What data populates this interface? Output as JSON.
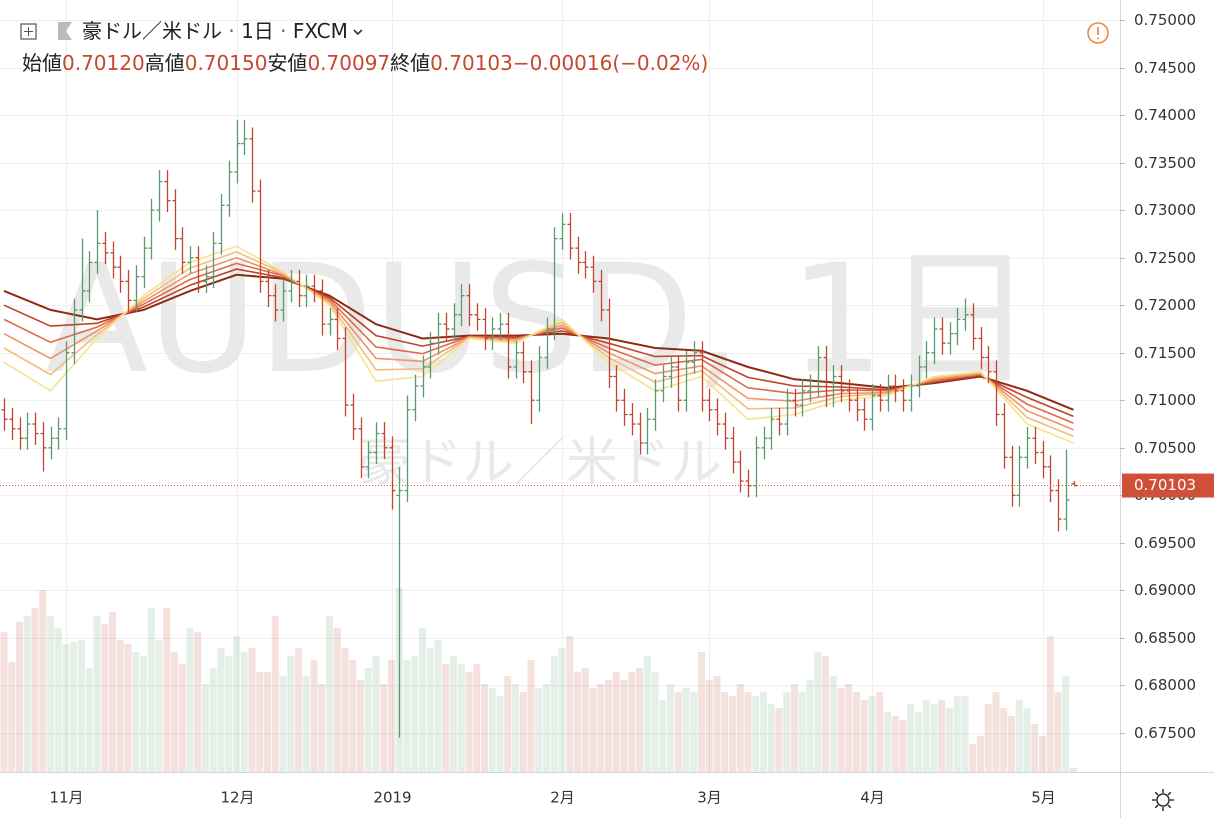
{
  "chart_data": {
    "type": "ohlc",
    "symbol": "豪ドル／米ドル",
    "interval": "1日",
    "source": "FXCM",
    "ohlc_legend": [
      {
        "name": "始値",
        "value": {
          "value": 0.7012,
          "label": "0.70120"
        }
      },
      {
        "name": "高値",
        "value": {
          "value": 0.7015,
          "label": "0.70150"
        }
      },
      {
        "name": "安値",
        "value": {
          "value": 0.70097,
          "label": "0.70097"
        }
      },
      {
        "name": "終値",
        "value": {
          "value": 0.70103,
          "label": "0.70103"
        }
      }
    ],
    "change": {
      "value": -0.00016,
      "label": "−0.00016"
    },
    "change_pct": {
      "value": -0.02,
      "label": "(−0.02%)"
    },
    "watermark": "AUDUSD, 1日",
    "watermark_sub": "豪ドル／米ドル",
    "last_price": {
      "value": 0.70103,
      "label": "0.70103"
    },
    "ylim": [
      0.6709,
      0.7521
    ],
    "yticks": [
      {
        "value": 0.675,
        "label": "0.67500"
      },
      {
        "value": 0.68,
        "label": "0.68000"
      },
      {
        "value": 0.685,
        "label": "0.68500"
      },
      {
        "value": 0.69,
        "label": "0.69000"
      },
      {
        "value": 0.695,
        "label": "0.69500"
      },
      {
        "value": 0.7,
        "label": "0.70000"
      },
      {
        "value": 0.705,
        "label": "0.70500"
      },
      {
        "value": 0.71,
        "label": "0.71000"
      },
      {
        "value": 0.715,
        "label": "0.71500"
      },
      {
        "value": 0.72,
        "label": "0.72000"
      },
      {
        "value": 0.725,
        "label": "0.72500"
      },
      {
        "value": 0.73,
        "label": "0.73000"
      },
      {
        "value": 0.735,
        "label": "0.73500"
      },
      {
        "value": 0.74,
        "label": "0.74000"
      },
      {
        "value": 0.745,
        "label": "0.74500"
      },
      {
        "value": 0.75,
        "label": "0.75000"
      }
    ],
    "grid": true,
    "up_color": "#5a9a6e",
    "down_color": "#c2452e",
    "categories": [
      null,
      null,
      null,
      null,
      null,
      null,
      null,
      null,
      "11月",
      null,
      null,
      null,
      null,
      null,
      null,
      null,
      null,
      null,
      null,
      null,
      null,
      null,
      null,
      null,
      null,
      null,
      null,
      null,
      null,
      null,
      "12月",
      null,
      null,
      null,
      null,
      null,
      null,
      null,
      null,
      null,
      null,
      null,
      null,
      null,
      null,
      null,
      null,
      null,
      null,
      null,
      "2019",
      null,
      null,
      null,
      null,
      null,
      null,
      null,
      null,
      null,
      null,
      null,
      null,
      null,
      null,
      null,
      null,
      null,
      null,
      null,
      null,
      null,
      "2月",
      null,
      null,
      null,
      null,
      null,
      null,
      null,
      null,
      null,
      null,
      null,
      null,
      null,
      null,
      null,
      null,
      null,
      null,
      "3月",
      null,
      null,
      null,
      null,
      null,
      null,
      null,
      null,
      null,
      null,
      null,
      null,
      null,
      null,
      null,
      null,
      null,
      null,
      null,
      null,
      "4月",
      null,
      null,
      null,
      null,
      null,
      null,
      null,
      null,
      null,
      null,
      null,
      null,
      null,
      null,
      null,
      null,
      null,
      null,
      null,
      null,
      null,
      "5月",
      null,
      null,
      null,
      null
    ],
    "open": [
      0.709,
      0.708,
      0.707,
      0.706,
      0.7075,
      0.7065,
      0.705,
      0.706,
      0.707,
      0.715,
      0.7195,
      0.7215,
      0.7245,
      0.7265,
      0.7255,
      0.724,
      0.7225,
      0.7205,
      0.723,
      0.726,
      0.73,
      0.733,
      0.731,
      0.727,
      0.7245,
      0.725,
      0.7225,
      0.723,
      0.7265,
      0.7305,
      0.734,
      0.737,
      0.7375,
      0.732,
      0.7225,
      0.721,
      0.7195,
      0.7215,
      0.7225,
      0.721,
      0.722,
      0.7215,
      0.718,
      0.7185,
      0.7165,
      0.7095,
      0.707,
      0.703,
      0.7045,
      0.7065,
      0.705,
      0.7,
      0.7005,
      0.709,
      0.7115,
      0.7135,
      0.716,
      0.718,
      0.7175,
      0.719,
      0.721,
      0.719,
      0.7185,
      0.7165,
      0.7175,
      0.718,
      0.7135,
      0.715,
      0.713,
      0.71,
      0.7145,
      0.7175,
      0.727,
      0.7285,
      0.726,
      0.7245,
      0.724,
      0.7225,
      0.7195,
      0.7125,
      0.71,
      0.7085,
      0.7075,
      0.7055,
      0.708,
      0.711,
      0.7125,
      0.7135,
      0.71,
      0.714,
      0.715,
      0.71,
      0.709,
      0.7075,
      0.706,
      0.7035,
      0.7015,
      0.701,
      0.705,
      0.706,
      0.708,
      0.7075,
      0.71,
      0.7095,
      0.711,
      0.7115,
      0.7145,
      0.7105,
      0.7125,
      0.711,
      0.71,
      0.709,
      0.708,
      0.7105,
      0.71,
      0.7115,
      0.711,
      0.71,
      0.7115,
      0.7135,
      0.715,
      0.7175,
      0.716,
      0.717,
      0.7185,
      0.719,
      0.7165,
      0.7145,
      0.713,
      0.7085,
      0.704,
      0.7,
      0.704,
      0.706,
      0.7045,
      0.703,
      0.7005,
      0.6975,
      0.7012
    ],
    "high": [
      0.7102,
      0.7092,
      0.7082,
      0.7087,
      0.7087,
      0.7077,
      0.7072,
      0.7082,
      0.7162,
      0.7207,
      0.727,
      0.7257,
      0.73,
      0.7277,
      0.7267,
      0.7252,
      0.7237,
      0.7242,
      0.7272,
      0.7312,
      0.7342,
      0.7342,
      0.7322,
      0.7282,
      0.7262,
      0.7262,
      0.7242,
      0.7277,
      0.7317,
      0.7352,
      0.7395,
      0.7395,
      0.7387,
      0.7332,
      0.7237,
      0.7222,
      0.7227,
      0.7237,
      0.7237,
      0.7232,
      0.7232,
      0.7227,
      0.7197,
      0.7197,
      0.7177,
      0.7107,
      0.7082,
      0.7057,
      0.7077,
      0.7077,
      0.7062,
      0.703,
      0.7105,
      0.7127,
      0.7147,
      0.7172,
      0.7192,
      0.7192,
      0.7202,
      0.7222,
      0.7222,
      0.7202,
      0.7197,
      0.7187,
      0.7192,
      0.7192,
      0.7162,
      0.7162,
      0.7142,
      0.7157,
      0.7187,
      0.7282,
      0.7297,
      0.7297,
      0.7272,
      0.7257,
      0.7252,
      0.7237,
      0.7207,
      0.7137,
      0.7112,
      0.7097,
      0.7087,
      0.7092,
      0.7122,
      0.7137,
      0.7147,
      0.7147,
      0.7152,
      0.7162,
      0.7162,
      0.7112,
      0.7102,
      0.7087,
      0.7072,
      0.7047,
      0.7027,
      0.7062,
      0.7072,
      0.7092,
      0.7092,
      0.7112,
      0.7112,
      0.7122,
      0.7127,
      0.7157,
      0.7157,
      0.7137,
      0.7137,
      0.7122,
      0.7112,
      0.7102,
      0.7117,
      0.7117,
      0.7127,
      0.7127,
      0.7122,
      0.7127,
      0.7147,
      0.7162,
      0.7187,
      0.7187,
      0.7182,
      0.7197,
      0.7207,
      0.7202,
      0.7177,
      0.7157,
      0.7142,
      0.7097,
      0.7052,
      0.7052,
      0.7072,
      0.7072,
      0.7057,
      0.7042,
      0.7017,
      0.7048,
      0.7015
    ],
    "low": [
      0.7068,
      0.7058,
      0.7048,
      0.7048,
      0.7053,
      0.7025,
      0.7038,
      0.7048,
      0.7058,
      0.7138,
      0.7183,
      0.7203,
      0.7233,
      0.7243,
      0.7228,
      0.7213,
      0.7193,
      0.7193,
      0.7218,
      0.7248,
      0.7288,
      0.7298,
      0.7258,
      0.7233,
      0.7233,
      0.7213,
      0.7213,
      0.7218,
      0.7253,
      0.7293,
      0.7328,
      0.7358,
      0.7308,
      0.7213,
      0.7198,
      0.7183,
      0.7183,
      0.7203,
      0.7198,
      0.7198,
      0.7203,
      0.7168,
      0.7168,
      0.7153,
      0.7083,
      0.7058,
      0.7018,
      0.7018,
      0.7033,
      0.7038,
      0.6985,
      0.6745,
      0.6993,
      0.7078,
      0.7103,
      0.7123,
      0.7148,
      0.7163,
      0.7163,
      0.7178,
      0.7178,
      0.7173,
      0.7153,
      0.7153,
      0.7163,
      0.7123,
      0.7123,
      0.7118,
      0.7075,
      0.7088,
      0.7133,
      0.7163,
      0.7258,
      0.7248,
      0.7233,
      0.7228,
      0.7213,
      0.7183,
      0.7113,
      0.7088,
      0.7073,
      0.7063,
      0.7043,
      0.7043,
      0.7068,
      0.7098,
      0.7113,
      0.7088,
      0.7088,
      0.7128,
      0.7088,
      0.7078,
      0.7063,
      0.7048,
      0.7023,
      0.7003,
      0.6998,
      0.6998,
      0.7038,
      0.7048,
      0.7063,
      0.7063,
      0.7083,
      0.7083,
      0.7098,
      0.7103,
      0.7093,
      0.7093,
      0.7098,
      0.7088,
      0.7078,
      0.7068,
      0.7068,
      0.7088,
      0.7088,
      0.7098,
      0.7088,
      0.7088,
      0.7103,
      0.7123,
      0.7138,
      0.7148,
      0.7148,
      0.7158,
      0.7173,
      0.7153,
      0.7133,
      0.7118,
      0.7073,
      0.7028,
      0.6988,
      0.6988,
      0.7028,
      0.7033,
      0.7018,
      0.6993,
      0.6962,
      0.6963,
      0.70097
    ],
    "close": [
      0.708,
      0.707,
      0.706,
      0.7075,
      0.7065,
      0.705,
      0.706,
      0.707,
      0.715,
      0.7195,
      0.7215,
      0.7245,
      0.7265,
      0.7255,
      0.724,
      0.7225,
      0.7205,
      0.723,
      0.726,
      0.73,
      0.733,
      0.731,
      0.727,
      0.7245,
      0.725,
      0.7225,
      0.723,
      0.7265,
      0.7305,
      0.734,
      0.737,
      0.7375,
      0.732,
      0.7225,
      0.721,
      0.7195,
      0.7215,
      0.7225,
      0.721,
      0.722,
      0.7215,
      0.718,
      0.7185,
      0.7165,
      0.7095,
      0.707,
      0.703,
      0.7045,
      0.7065,
      0.705,
      0.7005,
      0.7005,
      0.709,
      0.7115,
      0.7135,
      0.716,
      0.718,
      0.7175,
      0.719,
      0.721,
      0.719,
      0.7185,
      0.7165,
      0.7175,
      0.718,
      0.7135,
      0.715,
      0.713,
      0.71,
      0.7145,
      0.7175,
      0.727,
      0.7285,
      0.726,
      0.7245,
      0.724,
      0.7225,
      0.7195,
      0.7125,
      0.71,
      0.7085,
      0.7075,
      0.7055,
      0.708,
      0.711,
      0.7125,
      0.7135,
      0.71,
      0.714,
      0.715,
      0.71,
      0.709,
      0.7075,
      0.706,
      0.7035,
      0.7015,
      0.701,
      0.705,
      0.706,
      0.708,
      0.7075,
      0.71,
      0.7095,
      0.711,
      0.7115,
      0.7145,
      0.7105,
      0.7125,
      0.711,
      0.71,
      0.709,
      0.708,
      0.7105,
      0.71,
      0.7115,
      0.711,
      0.71,
      0.7115,
      0.7135,
      0.715,
      0.7175,
      0.716,
      0.717,
      0.7185,
      0.719,
      0.7165,
      0.7145,
      0.713,
      0.7085,
      0.704,
      0.7,
      0.704,
      0.706,
      0.7045,
      0.703,
      0.7005,
      0.6975,
      0.6995,
      0.70103
    ],
    "volume": [
      70,
      55,
      75,
      78,
      82,
      91,
      78,
      72,
      64,
      65,
      66,
      52,
      78,
      74,
      80,
      66,
      64,
      60,
      58,
      82,
      66,
      82,
      60,
      54,
      72,
      70,
      44,
      52,
      62,
      58,
      68,
      60,
      62,
      50,
      50,
      78,
      48,
      58,
      62,
      48,
      56,
      44,
      78,
      72,
      62,
      56,
      46,
      52,
      58,
      44,
      56,
      92,
      56,
      58,
      72,
      62,
      66,
      54,
      58,
      54,
      50,
      54,
      44,
      42,
      38,
      48,
      44,
      40,
      56,
      42,
      44,
      58,
      62,
      68,
      50,
      52,
      42,
      44,
      46,
      50,
      46,
      50,
      52,
      58,
      50,
      36,
      44,
      40,
      42,
      40,
      60,
      46,
      48,
      40,
      38,
      44,
      40,
      38,
      40,
      34,
      32,
      40,
      44,
      40,
      46,
      60,
      58,
      48,
      42,
      44,
      40,
      36,
      38,
      40,
      30,
      28,
      26,
      34,
      30,
      36,
      34,
      36,
      32,
      38,
      38,
      14,
      18,
      34,
      40,
      32,
      28,
      36,
      32,
      24,
      18,
      68,
      40,
      48,
      2
    ],
    "volume_lim": [
      0,
      100
    ],
    "ribbon_x": [
      0,
      6,
      12,
      18,
      24,
      30,
      36,
      42,
      48,
      54,
      60,
      66,
      72,
      78,
      84,
      90,
      96,
      102,
      108,
      114,
      120,
      126,
      132,
      138
    ],
    "ribbons": [
      {
        "color": "#8e2b12",
        "values": [
          0.7215,
          0.7195,
          0.7185,
          0.7195,
          0.7215,
          0.7232,
          0.7228,
          0.721,
          0.718,
          0.7165,
          0.7168,
          0.7168,
          0.717,
          0.7165,
          0.7155,
          0.7152,
          0.7135,
          0.7122,
          0.7118,
          0.7113,
          0.7118,
          0.7125,
          0.711,
          0.709
        ]
      },
      {
        "color": "#c0432a",
        "values": [
          0.72,
          0.7178,
          0.7181,
          0.7198,
          0.7221,
          0.7238,
          0.7229,
          0.7208,
          0.7168,
          0.7157,
          0.7167,
          0.7166,
          0.7173,
          0.716,
          0.7146,
          0.7147,
          0.7124,
          0.7115,
          0.7114,
          0.7111,
          0.7119,
          0.7126,
          0.7103,
          0.7083
        ]
      },
      {
        "color": "#dd6a4a",
        "values": [
          0.7185,
          0.7161,
          0.7177,
          0.7201,
          0.7227,
          0.7244,
          0.7231,
          0.7206,
          0.7156,
          0.7149,
          0.7167,
          0.7165,
          0.7176,
          0.7155,
          0.7137,
          0.7143,
          0.7113,
          0.7107,
          0.7111,
          0.711,
          0.7121,
          0.7127,
          0.7096,
          0.7076
        ]
      },
      {
        "color": "#ee9466",
        "values": [
          0.717,
          0.7144,
          0.7173,
          0.7204,
          0.7233,
          0.725,
          0.7232,
          0.7204,
          0.7144,
          0.7141,
          0.7166,
          0.7163,
          0.7179,
          0.715,
          0.7128,
          0.7136,
          0.7102,
          0.7099,
          0.7107,
          0.7108,
          0.7122,
          0.7128,
          0.7089,
          0.7069
        ]
      },
      {
        "color": "#f4bd7c",
        "values": [
          0.7155,
          0.7127,
          0.7169,
          0.7207,
          0.7239,
          0.7256,
          0.7234,
          0.7202,
          0.7132,
          0.7133,
          0.7166,
          0.7162,
          0.7182,
          0.7145,
          0.7119,
          0.7131,
          0.7091,
          0.7092,
          0.7104,
          0.7107,
          0.7124,
          0.7129,
          0.7082,
          0.7062
        ]
      },
      {
        "color": "#f6e38e",
        "values": [
          0.714,
          0.711,
          0.7165,
          0.721,
          0.7245,
          0.7262,
          0.7235,
          0.72,
          0.712,
          0.7125,
          0.7165,
          0.716,
          0.7185,
          0.714,
          0.711,
          0.7125,
          0.708,
          0.7085,
          0.71,
          0.7105,
          0.7125,
          0.713,
          0.7075,
          0.7055
        ]
      }
    ]
  }
}
